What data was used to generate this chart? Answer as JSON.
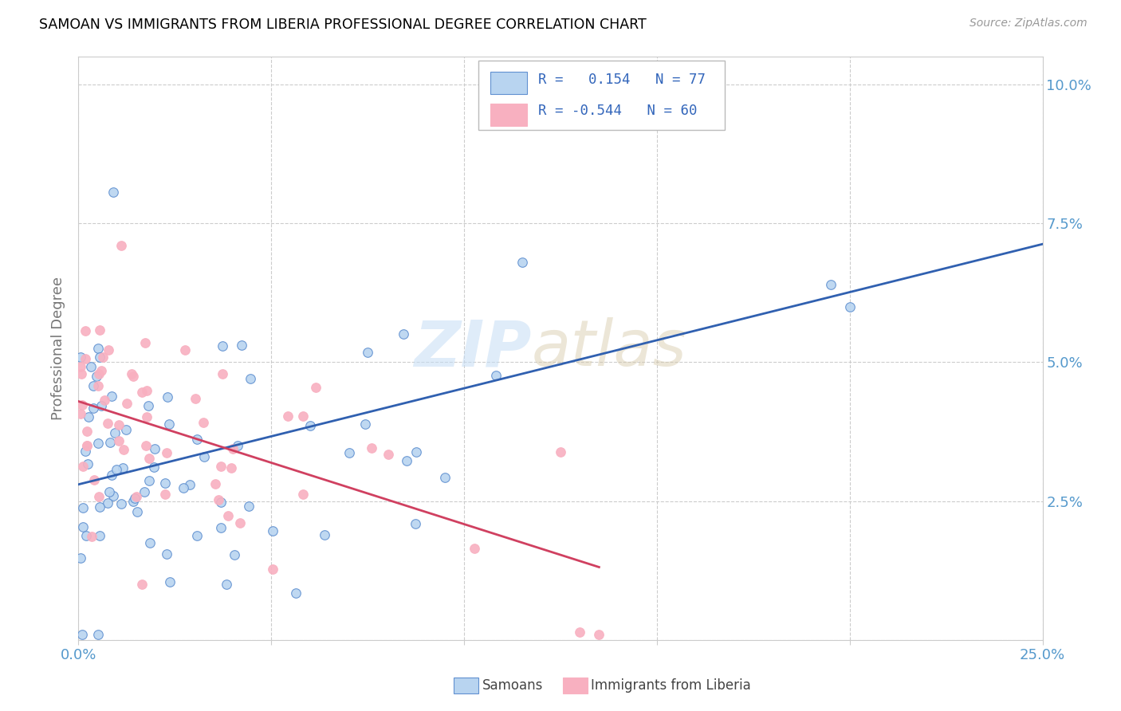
{
  "title": "SAMOAN VS IMMIGRANTS FROM LIBERIA PROFESSIONAL DEGREE CORRELATION CHART",
  "source": "Source: ZipAtlas.com",
  "ylabel": "Professional Degree",
  "xmin": 0.0,
  "xmax": 0.25,
  "ymin": 0.0,
  "ymax": 0.105,
  "r_samoan": 0.154,
  "n_samoan": 77,
  "r_liberia": -0.544,
  "n_liberia": 60,
  "legend_label_1": "Samoans",
  "legend_label_2": "Immigrants from Liberia",
  "watermark_zip": "ZIP",
  "watermark_atlas": "atlas",
  "color_samoan_fill": "#b8d4f0",
  "color_samoan_edge": "#6090d0",
  "color_liberia_fill": "#f8b0c0",
  "color_liberia_edge": "#e8708090",
  "color_line_samoan": "#3060b0",
  "color_line_liberia": "#d04060",
  "color_axis_text": "#5599cc",
  "color_grid": "#cccccc",
  "bg_color": "#ffffff"
}
